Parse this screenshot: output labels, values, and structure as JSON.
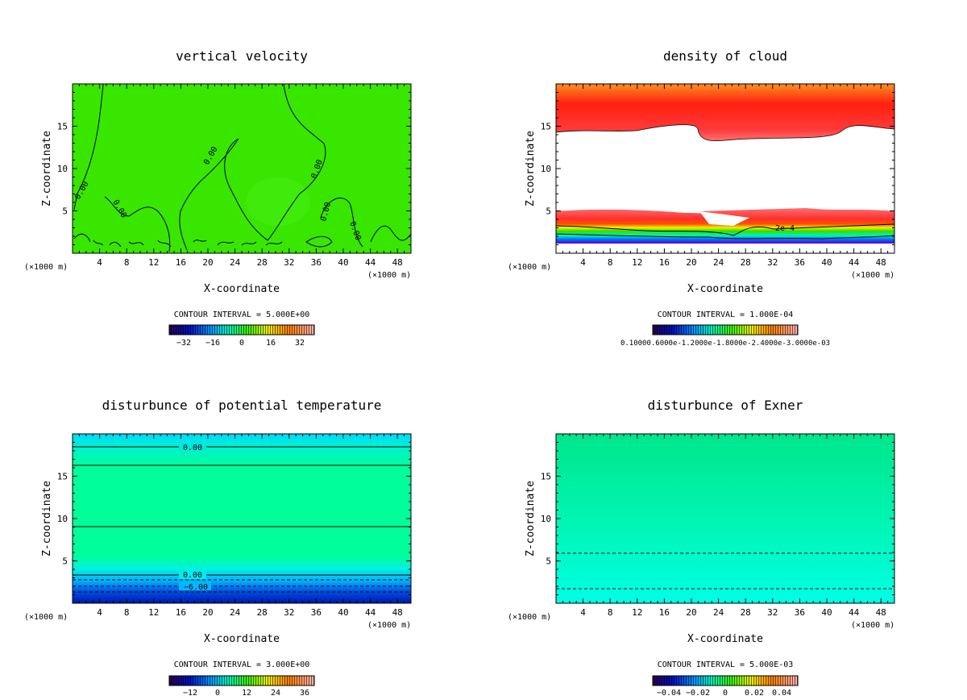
{
  "chart_data": [
    {
      "type": "heatmap",
      "title": "vertical velocity",
      "xlabel": "X-coordinate",
      "ylabel": "Z-coordinate",
      "x_unit": "(×1000 m)",
      "xticks": [
        4,
        8,
        12,
        16,
        20,
        24,
        28,
        32,
        36,
        40,
        44,
        48
      ],
      "yticks": [
        5,
        10,
        15
      ],
      "xlim": [
        0,
        50
      ],
      "ylim": [
        0,
        20
      ],
      "contour_labels": [
        "0.00",
        "0.00",
        "0.00",
        "0.00",
        "0.00",
        "0.00"
      ],
      "colorbar": {
        "label": "CONTOUR INTERVAL = 5.000E+00",
        "ticks": [
          "−32",
          "−16",
          "0",
          "16",
          "32"
        ]
      },
      "field_colors": {
        "background": "#39e600"
      }
    },
    {
      "type": "heatmap",
      "title": "density of cloud",
      "xlabel": "X-coordinate",
      "ylabel": "Z-coordinate",
      "x_unit": "(×1000 m)",
      "xticks": [
        4,
        8,
        12,
        16,
        20,
        24,
        28,
        32,
        36,
        40,
        44,
        48
      ],
      "yticks": [
        5,
        10,
        15
      ],
      "xlim": [
        0,
        50
      ],
      "ylim": [
        0,
        20
      ],
      "contour_labels": [
        "2e−4"
      ],
      "colorbar": {
        "label": "CONTOUR INTERVAL = 1.000E-04",
        "ticks": [
          "0.10000.6000e-1.2000e-1.8000e-2.4000e-3.0000e-03"
        ]
      },
      "field_colors": {
        "upper_layer": "#ff1010",
        "upper_edge": "#ffa000",
        "lower_layer": "#ff3030"
      }
    },
    {
      "type": "heatmap",
      "title": "disturbunce of potential temperature",
      "xlabel": "X-coordinate",
      "ylabel": "Z-coordinate",
      "x_unit": "(×1000 m)",
      "xticks": [
        4,
        8,
        12,
        16,
        20,
        24,
        28,
        32,
        36,
        40,
        44,
        48
      ],
      "yticks": [
        5,
        10,
        15
      ],
      "xlim": [
        0,
        50
      ],
      "ylim": [
        0,
        20
      ],
      "contour_labels": [
        "0.00",
        "0.00",
        "−6.00"
      ],
      "colorbar": {
        "label": "CONTOUR INTERVAL = 3.000E+00",
        "ticks": [
          "−12",
          "0",
          "12",
          "24",
          "36"
        ]
      },
      "field_colors": {
        "top": "#00e5ff",
        "middle": "#00ff9a",
        "bottom": "#0030d0"
      }
    },
    {
      "type": "heatmap",
      "title": "disturbunce of Exner",
      "xlabel": "X-coordinate",
      "ylabel": "Z-coordinate",
      "x_unit": "(×1000 m)",
      "xticks": [
        4,
        8,
        12,
        16,
        20,
        24,
        28,
        32,
        36,
        40,
        44,
        48
      ],
      "yticks": [
        5,
        10,
        15
      ],
      "xlim": [
        0,
        50
      ],
      "ylim": [
        0,
        20
      ],
      "contour_labels": [],
      "colorbar": {
        "label": "CONTOUR INTERVAL = 5.000E-03",
        "ticks": [
          "−0.04",
          "−0.02",
          "0",
          "0.02",
          "0.04"
        ]
      },
      "field_colors": {
        "top": "#00f08c",
        "bottom": "#00ffd0"
      }
    }
  ]
}
